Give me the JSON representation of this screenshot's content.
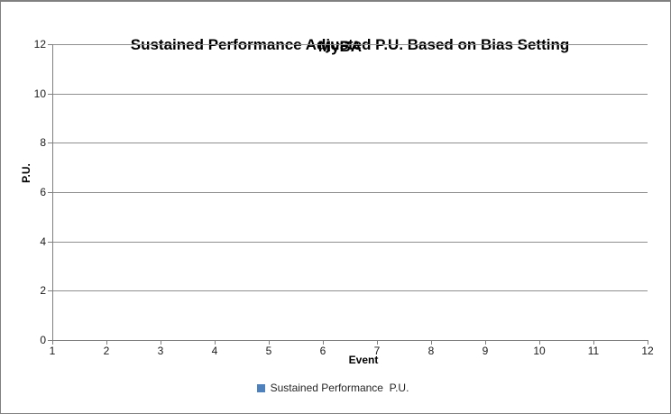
{
  "chart_data": {
    "type": "scatter",
    "title": "Sustained Performance Adjusted P.U. Based on Bias Setting",
    "overlay_title": "MyBA",
    "xlabel": "Event",
    "ylabel": "P.U.",
    "xlim": [
      1,
      12
    ],
    "ylim": [
      0,
      12
    ],
    "x_ticks": [
      1,
      2,
      3,
      4,
      5,
      6,
      7,
      8,
      9,
      10,
      11,
      12
    ],
    "y_ticks": [
      0,
      2,
      4,
      6,
      8,
      10,
      12
    ],
    "grid": "horizontal-major",
    "legend_position": "bottom",
    "series": [
      {
        "name": "Sustained Performance  P.U.",
        "color": "#4F81BD",
        "points": []
      }
    ]
  },
  "legend": {
    "label": "Sustained Performance  P.U."
  },
  "colors": {
    "series_blue": "#4F81BD",
    "gridline_gray": "#8f8f8f",
    "axis_gray": "#7f7f7f",
    "border_gray": "#808080",
    "title_black": "#000000"
  }
}
